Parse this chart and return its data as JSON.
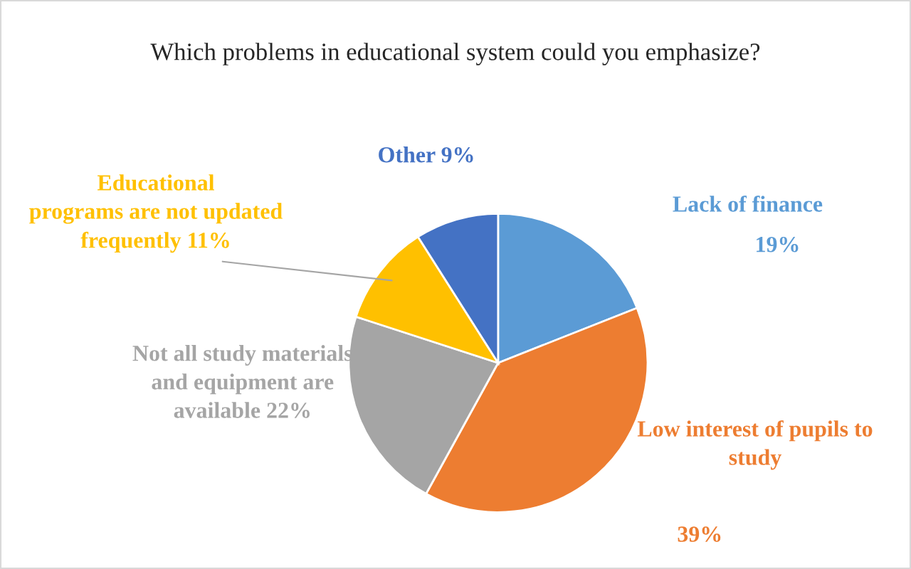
{
  "chart_data": {
    "type": "pie",
    "title": "Which problems in educational system could you emphasize?",
    "categories": [
      "Lack of finance",
      "Low interest of pupils to study",
      "Not all study materials\nand equipment are\navailable",
      "Educational\nprograms are not updated\nfrequently",
      "Other"
    ],
    "values": [
      19,
      39,
      22,
      11,
      9
    ],
    "colors": [
      "#5b9bd5",
      "#ed7d31",
      "#a5a5a5",
      "#ffc000",
      "#4472c4"
    ],
    "value_labels": [
      "19%",
      "39%",
      "22%",
      "11%",
      "9%"
    ]
  }
}
